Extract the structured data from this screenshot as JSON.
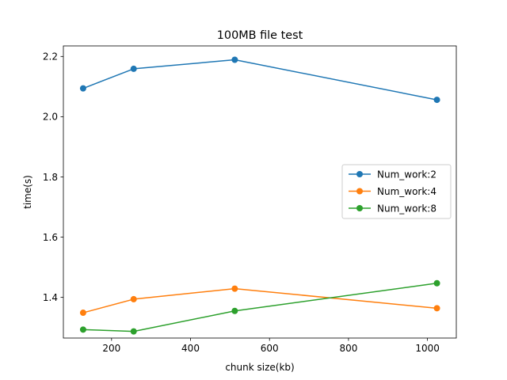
{
  "chart_data": {
    "type": "line",
    "title": "100MB file test",
    "xlabel": "chunk size(kb)",
    "ylabel": "time(s)",
    "xlim": [
      78,
      1073
    ],
    "ylim": [
      1.265,
      2.235
    ],
    "x_ticks": [
      200,
      400,
      600,
      800,
      1000
    ],
    "y_ticks": [
      1.4,
      1.6,
      1.8,
      2.0,
      2.2
    ],
    "x_tick_labels": [
      "200",
      "400",
      "600",
      "800",
      "1000"
    ],
    "y_tick_labels": [
      "1.4",
      "1.6",
      "1.8",
      "2.0",
      "2.2"
    ],
    "grid": false,
    "legend_position": "center-right",
    "x": [
      128,
      256,
      512,
      1024
    ],
    "series": [
      {
        "name": "Num_work:2",
        "color": "#1f77b4",
        "marker": "circle",
        "values": [
          2.094,
          2.159,
          2.189,
          2.056
        ]
      },
      {
        "name": "Num_work:4",
        "color": "#ff7f0e",
        "marker": "circle",
        "values": [
          1.349,
          1.394,
          1.429,
          1.364
        ]
      },
      {
        "name": "Num_work:8",
        "color": "#2ca02c",
        "marker": "circle",
        "values": [
          1.293,
          1.287,
          1.355,
          1.447
        ]
      }
    ]
  }
}
